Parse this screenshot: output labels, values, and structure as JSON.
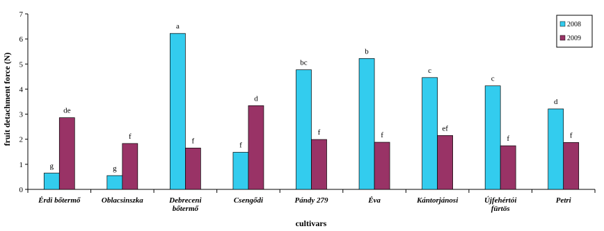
{
  "chart_data": {
    "type": "bar",
    "title": "",
    "xlabel": "cultivars",
    "ylabel": "fruit detachment force (N)",
    "ylim": [
      0,
      7
    ],
    "yticks": [
      "0",
      "1",
      "2",
      "3",
      "4",
      "5",
      "6",
      "7"
    ],
    "grid": false,
    "legend_position": "top-right",
    "categories": [
      [
        "Érdi bőtermő"
      ],
      [
        "Oblacsinszka"
      ],
      [
        "Debreceni",
        "bőtermő"
      ],
      [
        "Csengődi"
      ],
      [
        "Pándy 279"
      ],
      [
        "Éva"
      ],
      [
        "Kántorjánosi"
      ],
      [
        "Újfehértói",
        "fürtös"
      ],
      [
        "Petri"
      ]
    ],
    "series": [
      {
        "name": "2008",
        "color": "#33CCEE",
        "values": [
          0.65,
          0.55,
          6.22,
          1.48,
          4.77,
          5.22,
          4.46,
          4.13,
          3.21
        ],
        "labels": [
          "g",
          "g",
          "a",
          "f",
          "bc",
          "b",
          "c",
          "c",
          "d"
        ]
      },
      {
        "name": "2009",
        "color": "#993366",
        "values": [
          2.86,
          1.83,
          1.65,
          3.34,
          1.99,
          1.88,
          2.15,
          1.74,
          1.87
        ],
        "labels": [
          "de",
          "f",
          "f",
          "d",
          "f",
          "f",
          "ef",
          "f",
          "f"
        ]
      }
    ]
  }
}
